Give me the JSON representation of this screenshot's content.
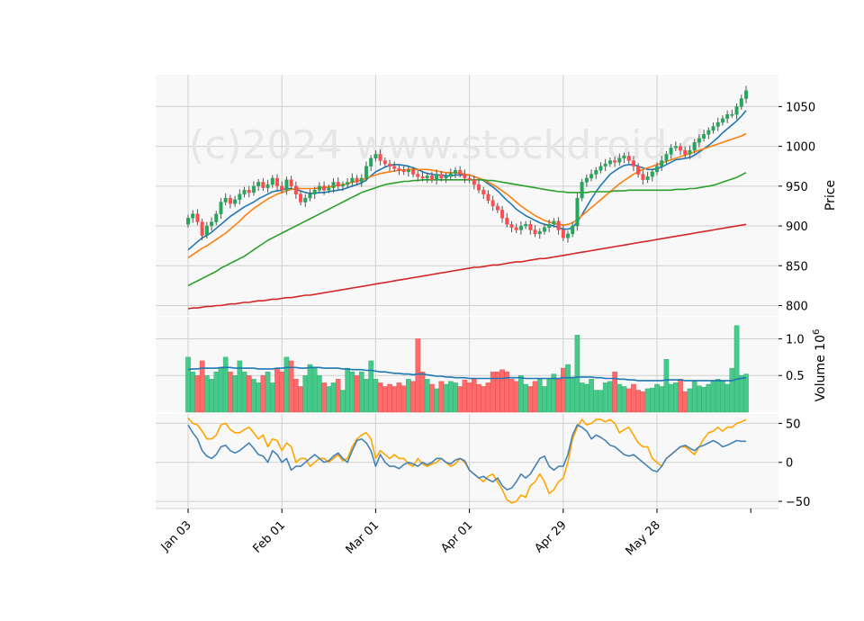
{
  "watermark": "(c)2024 www.stockdroid.d",
  "chart_data": {
    "type": "candlestick",
    "x_tick_labels": [
      "Jan 03",
      "Feb 01",
      "Mar 01",
      "Apr 01",
      "Apr 29",
      "May 28"
    ],
    "x_tick_indices": [
      0,
      20,
      40,
      60,
      80,
      100
    ],
    "num_bars": 120,
    "up_color": "#26a65b",
    "down_color": "#ff4d4f",
    "grid": true,
    "price_panel": {
      "ylabel": "Price",
      "yticks": [
        800,
        850,
        900,
        950,
        1000,
        1050
      ],
      "ylim": [
        787,
        1090
      ],
      "close": [
        910,
        915,
        905,
        888,
        900,
        905,
        915,
        930,
        935,
        928,
        933,
        940,
        945,
        942,
        950,
        955,
        948,
        952,
        960,
        950,
        945,
        958,
        950,
        940,
        930,
        935,
        940,
        945,
        950,
        945,
        948,
        955,
        950,
        952,
        955,
        960,
        955,
        960,
        975,
        985,
        990,
        982,
        978,
        975,
        972,
        970,
        968,
        970,
        965,
        962,
        960,
        963,
        958,
        965,
        960,
        962,
        966,
        970,
        965,
        960,
        958,
        952,
        945,
        940,
        932,
        925,
        920,
        910,
        902,
        898,
        895,
        900,
        902,
        895,
        890,
        893,
        898,
        902,
        906,
        895,
        885,
        890,
        900,
        935,
        955,
        960,
        965,
        970,
        975,
        978,
        982,
        980,
        985,
        988,
        982,
        975,
        965,
        958,
        962,
        968,
        975,
        982,
        990,
        998,
        1000,
        995,
        990,
        995,
        1005,
        1010,
        1015,
        1020,
        1025,
        1030,
        1035,
        1040,
        1040,
        1050,
        1060,
        1070
      ],
      "ma_lines": [
        {
          "color": "#1f77b4",
          "values": [
            870,
            875,
            880,
            885,
            888,
            892,
            897,
            902,
            907,
            912,
            916,
            920,
            924,
            927,
            930,
            934,
            937,
            940,
            943,
            944,
            945,
            947,
            947,
            946,
            944,
            942,
            941,
            941,
            942,
            942,
            943,
            944,
            945,
            946,
            948,
            950,
            952,
            954,
            958,
            963,
            968,
            971,
            974,
            976,
            977,
            977,
            976,
            975,
            973,
            971,
            968,
            966,
            965,
            964,
            964,
            963,
            963,
            964,
            964,
            964,
            964,
            962,
            960,
            957,
            953,
            949,
            944,
            938,
            932,
            927,
            921,
            917,
            913,
            910,
            907,
            904,
            902,
            901,
            900,
            898,
            896,
            896,
            898,
            905,
            914,
            924,
            934,
            943,
            951,
            958,
            965,
            969,
            973,
            976,
            977,
            977,
            975,
            973,
            971,
            971,
            972,
            974,
            977,
            980,
            983,
            984,
            985,
            986,
            989,
            993,
            997,
            1001,
            1006,
            1011,
            1017,
            1022,
            1027,
            1032,
            1038,
            1045
          ]
        },
        {
          "color": "#ff7f0e",
          "values": [
            860,
            864,
            868,
            872,
            875,
            879,
            883,
            887,
            891,
            896,
            901,
            906,
            912,
            917,
            922,
            926,
            930,
            934,
            937,
            940,
            942,
            944,
            946,
            947,
            947,
            947,
            947,
            947,
            948,
            948,
            949,
            950,
            951,
            952,
            953,
            955,
            956,
            958,
            960,
            962,
            964,
            966,
            967,
            968,
            969,
            970,
            970,
            971,
            971,
            971,
            971,
            971,
            970,
            969,
            968,
            967,
            967,
            967,
            966,
            965,
            964,
            962,
            960,
            958,
            955,
            952,
            948,
            944,
            940,
            935,
            930,
            925,
            921,
            917,
            913,
            910,
            907,
            905,
            903,
            902,
            901,
            902,
            904,
            908,
            913,
            918,
            923,
            928,
            933,
            938,
            943,
            948,
            953,
            957,
            961,
            965,
            968,
            971,
            973,
            975,
            977,
            979,
            981,
            983,
            985,
            987,
            989,
            991,
            993,
            995,
            997,
            999,
            1001,
            1003,
            1005,
            1007,
            1009,
            1011,
            1013,
            1016
          ]
        },
        {
          "color": "#2ca02c",
          "values": [
            825,
            828,
            831,
            834,
            837,
            840,
            843,
            847,
            850,
            853,
            856,
            859,
            862,
            866,
            870,
            874,
            878,
            882,
            885,
            888,
            891,
            894,
            897,
            900,
            903,
            906,
            909,
            912,
            915,
            918,
            921,
            924,
            927,
            930,
            933,
            936,
            939,
            942,
            944,
            946,
            948,
            950,
            952,
            953,
            954,
            955,
            956,
            956,
            957,
            957,
            958,
            958,
            958,
            958,
            958,
            958,
            958,
            958,
            958,
            958,
            958,
            958,
            958,
            958,
            957,
            957,
            956,
            955,
            954,
            953,
            952,
            951,
            950,
            949,
            948,
            947,
            946,
            945,
            944,
            943,
            943,
            942,
            942,
            942,
            942,
            942,
            943,
            943,
            943,
            943,
            943,
            944,
            944,
            944,
            945,
            945,
            945,
            945,
            945,
            945,
            945,
            945,
            945,
            945,
            946,
            946,
            946,
            947,
            947,
            948,
            949,
            950,
            951,
            953,
            955,
            957,
            959,
            961,
            964,
            967
          ]
        },
        {
          "color": "#d62728",
          "values": [
            796,
            797,
            797,
            798,
            799,
            799,
            800,
            800,
            801,
            802,
            802,
            803,
            804,
            804,
            805,
            806,
            806,
            807,
            808,
            808,
            809,
            810,
            810,
            811,
            812,
            813,
            813,
            814,
            815,
            816,
            817,
            818,
            819,
            820,
            821,
            822,
            823,
            824,
            825,
            826,
            827,
            828,
            829,
            830,
            831,
            832,
            833,
            834,
            835,
            836,
            837,
            838,
            839,
            840,
            841,
            842,
            843,
            844,
            845,
            846,
            847,
            848,
            848,
            849,
            850,
            851,
            851,
            852,
            853,
            854,
            855,
            855,
            856,
            857,
            858,
            859,
            859,
            860,
            861,
            862,
            863,
            864,
            865,
            866,
            867,
            868,
            869,
            870,
            871,
            872,
            873,
            874,
            875,
            876,
            877,
            878,
            879,
            880,
            881,
            882,
            883,
            884,
            885,
            886,
            887,
            888,
            889,
            890,
            891,
            892,
            893,
            894,
            895,
            896,
            897,
            898,
            899,
            900,
            901,
            902
          ]
        }
      ]
    },
    "volume_panel": {
      "ylabel": "Volume  10^6",
      "yticks": [
        0.5,
        1.0
      ],
      "ytick_labels": [
        "0.5",
        "1.0"
      ],
      "ylim": [
        0,
        1.3
      ],
      "volume": [
        0.75,
        0.55,
        0.5,
        0.7,
        0.5,
        0.45,
        0.55,
        0.6,
        0.75,
        0.55,
        0.5,
        0.7,
        0.55,
        0.5,
        0.45,
        0.4,
        0.5,
        0.55,
        0.4,
        0.6,
        0.55,
        0.75,
        0.7,
        0.45,
        0.35,
        0.5,
        0.65,
        0.6,
        0.5,
        0.4,
        0.35,
        0.4,
        0.45,
        0.3,
        0.6,
        0.55,
        0.5,
        0.55,
        0.45,
        0.7,
        0.45,
        0.4,
        0.35,
        0.38,
        0.35,
        0.4,
        0.36,
        0.45,
        0.42,
        1.0,
        0.55,
        0.45,
        0.38,
        0.32,
        0.42,
        0.38,
        0.42,
        0.4,
        0.35,
        0.44,
        0.4,
        0.45,
        0.38,
        0.35,
        0.4,
        0.55,
        0.55,
        0.58,
        0.55,
        0.45,
        0.42,
        0.5,
        0.38,
        0.35,
        0.42,
        0.45,
        0.35,
        0.45,
        0.52,
        0.45,
        0.6,
        0.65,
        0.48,
        1.05,
        0.4,
        0.38,
        0.45,
        0.3,
        0.3,
        0.4,
        0.42,
        0.55,
        0.38,
        0.35,
        0.32,
        0.38,
        0.3,
        0.28,
        0.32,
        0.33,
        0.38,
        0.35,
        0.72,
        0.38,
        0.4,
        0.45,
        0.28,
        0.32,
        0.42,
        0.36,
        0.34,
        0.38,
        0.42,
        0.45,
        0.42,
        0.38,
        0.6,
        1.18,
        0.5,
        0.52
      ],
      "ma_line": {
        "color": "#1f77b4",
        "values": [
          0.58,
          0.59,
          0.59,
          0.6,
          0.6,
          0.6,
          0.6,
          0.61,
          0.61,
          0.61,
          0.6,
          0.6,
          0.6,
          0.6,
          0.6,
          0.59,
          0.59,
          0.59,
          0.59,
          0.6,
          0.6,
          0.61,
          0.61,
          0.61,
          0.6,
          0.6,
          0.61,
          0.61,
          0.61,
          0.6,
          0.6,
          0.6,
          0.6,
          0.59,
          0.59,
          0.58,
          0.58,
          0.58,
          0.57,
          0.57,
          0.56,
          0.55,
          0.55,
          0.54,
          0.53,
          0.53,
          0.52,
          0.52,
          0.51,
          0.52,
          0.52,
          0.51,
          0.5,
          0.49,
          0.49,
          0.48,
          0.48,
          0.47,
          0.47,
          0.47,
          0.46,
          0.46,
          0.46,
          0.46,
          0.46,
          0.46,
          0.46,
          0.46,
          0.47,
          0.47,
          0.47,
          0.47,
          0.46,
          0.46,
          0.46,
          0.46,
          0.46,
          0.46,
          0.46,
          0.46,
          0.47,
          0.47,
          0.47,
          0.48,
          0.48,
          0.48,
          0.48,
          0.47,
          0.47,
          0.46,
          0.46,
          0.46,
          0.45,
          0.45,
          0.44,
          0.44,
          0.43,
          0.43,
          0.43,
          0.43,
          0.43,
          0.43,
          0.44,
          0.44,
          0.44,
          0.44,
          0.43,
          0.43,
          0.43,
          0.43,
          0.43,
          0.43,
          0.43,
          0.43,
          0.43,
          0.43,
          0.43,
          0.45,
          0.46,
          0.47
        ]
      }
    },
    "oscillator_panel": {
      "yticks": [
        -50,
        0,
        50
      ],
      "ylim": [
        -58,
        62
      ],
      "lines": [
        {
          "color": "#ffa500",
          "values": [
            57,
            50,
            48,
            40,
            30,
            30,
            35,
            48,
            50,
            42,
            38,
            38,
            42,
            45,
            38,
            30,
            35,
            20,
            30,
            28,
            15,
            25,
            20,
            0,
            5,
            5,
            -5,
            0,
            5,
            5,
            0,
            5,
            10,
            2,
            5,
            20,
            30,
            35,
            38,
            30,
            5,
            15,
            10,
            5,
            10,
            5,
            5,
            -2,
            -5,
            5,
            -2,
            -5,
            -2,
            0,
            5,
            0,
            -5,
            -2,
            5,
            0,
            -10,
            -15,
            -20,
            -25,
            -18,
            -15,
            -25,
            -35,
            -48,
            -52,
            -50,
            -42,
            -45,
            -30,
            -25,
            -15,
            -25,
            -40,
            -35,
            -25,
            -20,
            0,
            30,
            45,
            55,
            48,
            50,
            55,
            55,
            52,
            55,
            50,
            38,
            42,
            45,
            35,
            25,
            20,
            20,
            5,
            0,
            -5,
            5,
            10,
            15,
            20,
            20,
            15,
            10,
            20,
            30,
            38,
            40,
            45,
            40,
            45,
            45,
            50,
            52,
            55
          ]
        },
        {
          "color": "#4682b4",
          "values": [
            48,
            38,
            30,
            15,
            8,
            5,
            10,
            20,
            22,
            15,
            12,
            15,
            20,
            25,
            18,
            10,
            8,
            0,
            15,
            10,
            0,
            5,
            -10,
            -5,
            -5,
            0,
            5,
            10,
            5,
            0,
            2,
            8,
            12,
            5,
            0,
            15,
            28,
            30,
            25,
            15,
            -5,
            10,
            0,
            -5,
            -5,
            -8,
            -3,
            0,
            -2,
            -5,
            0,
            -3,
            0,
            5,
            5,
            0,
            -2,
            3,
            5,
            2,
            -10,
            -15,
            -20,
            -18,
            -22,
            -25,
            -20,
            -30,
            -35,
            -33,
            -25,
            -15,
            -20,
            -15,
            -5,
            5,
            8,
            -5,
            -10,
            -5,
            -5,
            10,
            35,
            48,
            45,
            40,
            30,
            35,
            32,
            28,
            22,
            20,
            15,
            10,
            8,
            10,
            5,
            0,
            -5,
            -10,
            -12,
            -5,
            5,
            10,
            15,
            20,
            22,
            18,
            15,
            20,
            22,
            25,
            28,
            25,
            20,
            22,
            25,
            28,
            27,
            27
          ]
        }
      ]
    }
  }
}
